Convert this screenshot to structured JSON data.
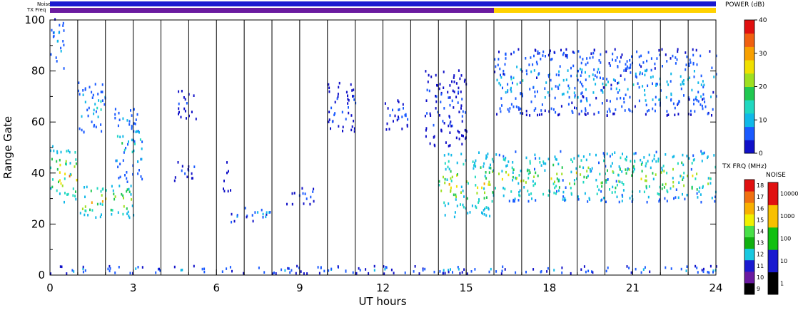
{
  "chart_data": {
    "type": "heatmap",
    "title": "",
    "xlabel": "UT hours",
    "ylabel": "Range Gate",
    "xlim": [
      0,
      24
    ],
    "ylim": [
      0,
      100
    ],
    "x_ticks": [
      "0",
      "3",
      "6",
      "9",
      "12",
      "15",
      "18",
      "21",
      "24"
    ],
    "y_ticks": [
      "0",
      "20",
      "40",
      "60",
      "80",
      "100"
    ],
    "hour_gridlines": [
      1,
      2,
      3,
      4,
      5,
      6,
      7,
      8,
      9,
      10,
      11,
      12,
      13,
      14,
      15,
      16,
      17,
      18,
      19,
      20,
      21,
      22,
      23
    ],
    "top_bars": {
      "noise_label": "Noise",
      "txfreq_label": "TX Freq",
      "noise_color": "#1a1ad0",
      "txfreq_segments": [
        {
          "start": 0,
          "end": 16,
          "color": "#6a1aa0"
        },
        {
          "start": 16,
          "end": 24,
          "color": "#ffd200"
        }
      ]
    },
    "power_scale": {
      "title": "POWER (dB)",
      "min": 0,
      "max": 40,
      "ticks": [
        "0",
        "10",
        "20",
        "30",
        "40"
      ],
      "colors": [
        "#1010c8",
        "#1a5aff",
        "#10b8e8",
        "#20d8c0",
        "#20c850",
        "#9ee020",
        "#f0e000",
        "#f8a000",
        "#f06010",
        "#e01010"
      ]
    },
    "txfreq_scale": {
      "title": "TX FRQ (MHz)",
      "ticks": [
        "9",
        "10",
        "11",
        "12",
        "13",
        "14",
        "15",
        "16",
        "17",
        "18"
      ],
      "colors": [
        "#000000",
        "#6a1aa0",
        "#1a1ad0",
        "#18c8e0",
        "#10b010",
        "#48e048",
        "#f0f000",
        "#f8b000",
        "#f07010",
        "#e01010"
      ]
    },
    "noise_scale": {
      "title": "NOISE",
      "ticks": [
        "1",
        "10",
        "100",
        "1000",
        "10000"
      ],
      "colors": [
        "#000000",
        "#1a1ad0",
        "#10c010",
        "#f8c000",
        "#e01010"
      ]
    },
    "echo_regions": [
      {
        "t0": 0.0,
        "t1": 1.0,
        "g0": 28,
        "g1": 50,
        "power": 30
      },
      {
        "t0": 0.0,
        "t1": 0.5,
        "g0": 80,
        "g1": 100,
        "power": 12
      },
      {
        "t0": 1.0,
        "t1": 3.0,
        "g0": 22,
        "g1": 35,
        "power": 28
      },
      {
        "t0": 1.0,
        "t1": 2.0,
        "g0": 55,
        "g1": 75,
        "power": 14
      },
      {
        "t0": 2.3,
        "t1": 3.3,
        "g0": 36,
        "g1": 65,
        "power": 16
      },
      {
        "t0": 4.4,
        "t1": 5.2,
        "g0": 36,
        "g1": 44,
        "power": 6
      },
      {
        "t0": 4.6,
        "t1": 5.3,
        "g0": 60,
        "g1": 72,
        "power": 6
      },
      {
        "t0": 6.2,
        "t1": 6.5,
        "g0": 32,
        "g1": 44,
        "power": 4
      },
      {
        "t0": 6.5,
        "t1": 8.0,
        "g0": 20,
        "g1": 26,
        "power": 12
      },
      {
        "t0": 8.5,
        "t1": 9.5,
        "g0": 27,
        "g1": 34,
        "power": 8
      },
      {
        "t0": 10.0,
        "t1": 11.0,
        "g0": 55,
        "g1": 75,
        "power": 7
      },
      {
        "t0": 12.0,
        "t1": 13.0,
        "g0": 56,
        "g1": 68,
        "power": 6
      },
      {
        "t0": 13.5,
        "t1": 15.0,
        "g0": 50,
        "g1": 80,
        "power": 6
      },
      {
        "t0": 14.0,
        "t1": 16.0,
        "g0": 22,
        "g1": 48,
        "power": 26
      },
      {
        "t0": 16.0,
        "t1": 24.0,
        "g0": 28,
        "g1": 48,
        "power": 24
      },
      {
        "t0": 16.0,
        "t1": 24.0,
        "g0": 62,
        "g1": 88,
        "power": 12
      },
      {
        "t0": 0.0,
        "t1": 24.0,
        "g0": 0,
        "g1": 3,
        "power": 10
      }
    ]
  }
}
